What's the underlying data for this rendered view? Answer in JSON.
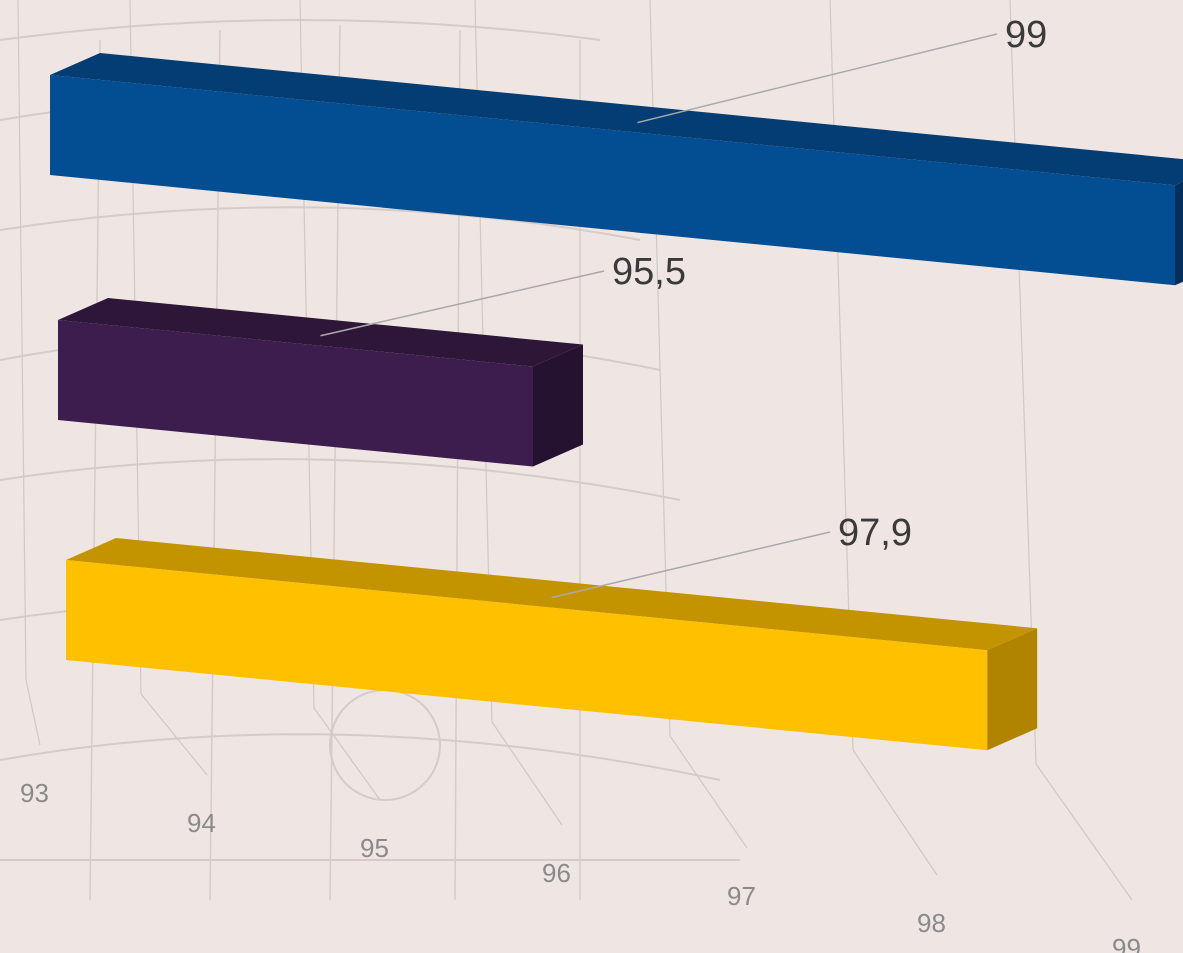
{
  "chart_data": {
    "type": "bar",
    "orientation": "horizontal",
    "three_d": true,
    "title": "",
    "xlabel": "",
    "ylabel": "",
    "xlim": [
      93,
      99
    ],
    "x_ticks": [
      "93",
      "94",
      "95",
      "96",
      "97",
      "98",
      "99"
    ],
    "grid": true,
    "legend": "none",
    "series": [
      {
        "values": [
          99,
          95.5,
          97.9
        ]
      }
    ],
    "bars": [
      {
        "value": 99,
        "label": "99",
        "color_front": "#034d92",
        "color_top": "#033d73",
        "color_side": "#022f5b"
      },
      {
        "value": 95.5,
        "label": "95,5",
        "color_front": "#3c1d4d",
        "color_top": "#2e1639",
        "color_side": "#251130"
      },
      {
        "value": 97.9,
        "label": "97,9",
        "color_front": "#ffc000",
        "color_top": "#c49400",
        "color_side": "#b08400"
      }
    ]
  }
}
